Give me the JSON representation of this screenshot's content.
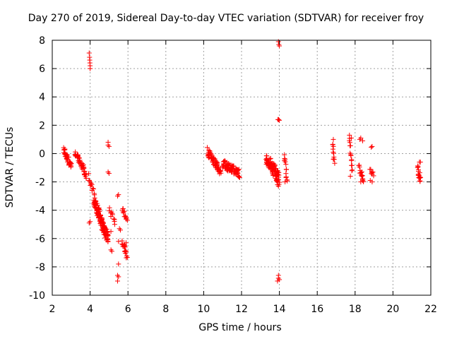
{
  "chart_data": {
    "type": "scatter",
    "title": "Day 270 of 2019, Sidereal Day-to-day VTEC variation (SDTVAR) for receiver froy",
    "xlabel": "GPS time / hours",
    "ylabel": "SDTVAR / TECUs",
    "xlim": [
      2,
      22
    ],
    "ylim": [
      -10,
      8
    ],
    "xticks": [
      "2",
      "4",
      "6",
      "8",
      "10",
      "12",
      "14",
      "16",
      "18",
      "20",
      "22"
    ],
    "yticks": [
      "-10",
      "-8",
      "-6",
      "-4",
      "-2",
      "0",
      "2",
      "4",
      "6",
      "8"
    ],
    "grid": true,
    "marker": "+",
    "color": "#ff0000",
    "clusters": [
      {
        "x_from": 2.6,
        "x_to": 3.0,
        "y_from": 0.3,
        "y_to": -0.9,
        "n": 40,
        "spread": 0.25
      },
      {
        "x_from": 3.2,
        "x_to": 3.8,
        "y_from": 0.1,
        "y_to": -1.5,
        "n": 45,
        "spread": 0.25
      },
      {
        "x_from": 3.9,
        "x_to": 4.2,
        "y_from": -1.6,
        "y_to": -2.8,
        "n": 12,
        "spread": 0.2
      },
      {
        "x_from": 4.2,
        "x_to": 4.95,
        "y_from": -3.3,
        "y_to": -6.1,
        "n": 130,
        "spread": 0.45
      },
      {
        "x_from": 5.0,
        "x_to": 5.3,
        "y_from": -4.0,
        "y_to": -4.6,
        "n": 10,
        "spread": 0.3
      },
      {
        "x_from": 5.7,
        "x_to": 5.95,
        "y_from": -4.0,
        "y_to": -4.6,
        "n": 14,
        "spread": 0.2
      },
      {
        "x_from": 5.7,
        "x_to": 5.95,
        "y_from": -6.2,
        "y_to": -7.3,
        "n": 18,
        "spread": 0.2
      },
      {
        "x_from": 10.2,
        "x_to": 10.9,
        "y_from": 0.2,
        "y_to": -1.3,
        "n": 60,
        "spread": 0.3
      },
      {
        "x_from": 11.0,
        "x_to": 11.9,
        "y_from": -0.7,
        "y_to": -1.4,
        "n": 80,
        "spread": 0.3
      },
      {
        "x_from": 13.3,
        "x_to": 14.0,
        "y_from": -0.3,
        "y_to": -1.8,
        "n": 90,
        "spread": 0.45
      },
      {
        "x_from": 14.25,
        "x_to": 14.4,
        "y_from": 0.0,
        "y_to": -1.9,
        "n": 12,
        "spread": 0.2
      },
      {
        "x_from": 16.8,
        "x_to": 16.9,
        "y_from": 0.8,
        "y_to": -0.6,
        "n": 10,
        "spread": 0.2
      },
      {
        "x_from": 17.7,
        "x_to": 17.85,
        "y_from": 1.2,
        "y_to": -1.4,
        "n": 14,
        "spread": 0.2
      },
      {
        "x_from": 18.2,
        "x_to": 18.45,
        "y_from": -1.0,
        "y_to": -2.0,
        "n": 16,
        "spread": 0.25
      },
      {
        "x_from": 18.8,
        "x_to": 18.95,
        "y_from": -1.2,
        "y_to": -1.5,
        "n": 8,
        "spread": 0.15
      },
      {
        "x_from": 21.3,
        "x_to": 21.45,
        "y_from": -1.0,
        "y_to": -1.9,
        "n": 16,
        "spread": 0.25
      }
    ],
    "points": [
      [
        3.95,
        7.1
      ],
      [
        3.97,
        6.8
      ],
      [
        3.98,
        6.6
      ],
      [
        3.99,
        6.4
      ],
      [
        4.0,
        6.2
      ],
      [
        4.0,
        6.0
      ],
      [
        4.95,
        0.8
      ],
      [
        4.95,
        0.6
      ],
      [
        5.0,
        0.5
      ],
      [
        4.95,
        -1.3
      ],
      [
        5.0,
        -1.4
      ],
      [
        3.95,
        -4.9
      ],
      [
        4.0,
        -4.8
      ],
      [
        4.05,
        -2.2
      ],
      [
        4.1,
        -2.6
      ],
      [
        5.1,
        -5.5
      ],
      [
        5.15,
        -6.9
      ],
      [
        5.1,
        -6.8
      ],
      [
        5.3,
        -5.0
      ],
      [
        5.5,
        -2.9
      ],
      [
        5.45,
        -3.0
      ],
      [
        5.6,
        -5.4
      ],
      [
        5.55,
        -5.3
      ],
      [
        5.5,
        -6.2
      ],
      [
        5.5,
        -7.8
      ],
      [
        5.45,
        -8.6
      ],
      [
        5.5,
        -8.7
      ],
      [
        5.45,
        -9.0
      ],
      [
        5.8,
        -6.4
      ],
      [
        5.85,
        -6.6
      ],
      [
        5.9,
        -6.3
      ],
      [
        13.95,
        7.9
      ],
      [
        13.97,
        7.7
      ],
      [
        14.0,
        7.6
      ],
      [
        13.92,
        2.4
      ],
      [
        13.96,
        2.4
      ],
      [
        14.0,
        2.35
      ],
      [
        13.9,
        -2.2
      ],
      [
        13.95,
        -2.3
      ],
      [
        13.95,
        -8.6
      ],
      [
        13.95,
        -8.8
      ],
      [
        13.9,
        -9.0
      ],
      [
        14.0,
        -8.9
      ],
      [
        14.3,
        -2.0
      ],
      [
        14.35,
        -1.7
      ],
      [
        16.85,
        1.0
      ],
      [
        17.7,
        1.3
      ],
      [
        17.8,
        1.1
      ],
      [
        18.25,
        1.0
      ],
      [
        18.3,
        1.1
      ],
      [
        18.4,
        0.9
      ],
      [
        18.9,
        0.5
      ],
      [
        18.85,
        0.45
      ],
      [
        18.3,
        -2.0
      ],
      [
        18.4,
        -1.9
      ],
      [
        18.8,
        -1.9
      ],
      [
        18.9,
        -2.0
      ],
      [
        17.75,
        -1.6
      ],
      [
        16.85,
        -0.4
      ],
      [
        21.4,
        -0.6
      ],
      [
        21.45,
        -0.6
      ]
    ]
  }
}
